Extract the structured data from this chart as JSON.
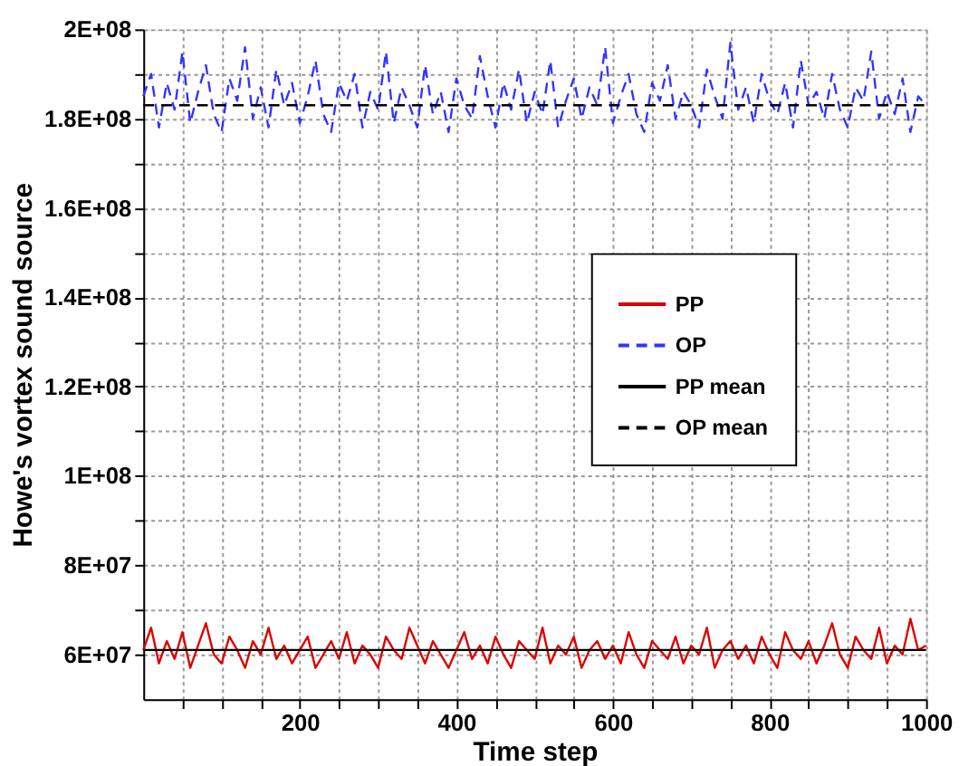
{
  "chart_data": {
    "type": "line",
    "xlabel": "Time step",
    "ylabel": "Howe's vortex sound source",
    "x": [
      0,
      10,
      20,
      30,
      40,
      50,
      60,
      70,
      80,
      90,
      100,
      110,
      120,
      130,
      140,
      150,
      160,
      170,
      180,
      190,
      200,
      210,
      220,
      230,
      240,
      250,
      260,
      270,
      280,
      290,
      300,
      310,
      320,
      330,
      340,
      350,
      360,
      370,
      380,
      390,
      400,
      410,
      420,
      430,
      440,
      450,
      460,
      470,
      480,
      490,
      500,
      510,
      520,
      530,
      540,
      550,
      560,
      570,
      580,
      590,
      600,
      610,
      620,
      630,
      640,
      650,
      660,
      670,
      680,
      690,
      700,
      710,
      720,
      730,
      740,
      750,
      760,
      770,
      780,
      790,
      800,
      810,
      820,
      830,
      840,
      850,
      860,
      870,
      880,
      890,
      900,
      910,
      920,
      930,
      940,
      950,
      960,
      970,
      980,
      990,
      1000
    ],
    "series": [
      {
        "name": "PP",
        "color": "#dd0000",
        "line_style": "solid",
        "values": [
          61000000,
          66000000,
          58000000,
          63000000,
          59000000,
          65000000,
          57000000,
          62000000,
          67000000,
          60000000,
          58000000,
          64000000,
          61000000,
          57000000,
          63000000,
          60000000,
          66000000,
          59000000,
          62000000,
          58000000,
          61000000,
          64000000,
          57000000,
          60000000,
          63000000,
          59000000,
          65000000,
          58000000,
          62000000,
          60000000,
          57000000,
          64000000,
          61000000,
          59000000,
          66000000,
          62000000,
          58000000,
          63000000,
          60000000,
          57000000,
          61000000,
          65000000,
          59000000,
          62000000,
          58000000,
          64000000,
          60000000,
          57000000,
          63000000,
          61000000,
          59000000,
          66000000,
          58000000,
          62000000,
          60000000,
          64000000,
          57000000,
          61000000,
          63000000,
          59000000,
          62000000,
          58000000,
          65000000,
          60000000,
          57000000,
          63000000,
          61000000,
          59000000,
          64000000,
          58000000,
          62000000,
          60000000,
          66000000,
          57000000,
          61000000,
          63000000,
          59000000,
          62000000,
          58000000,
          64000000,
          60000000,
          57000000,
          65000000,
          61000000,
          59000000,
          63000000,
          58000000,
          62000000,
          67000000,
          60000000,
          57000000,
          64000000,
          61000000,
          59000000,
          66000000,
          58000000,
          62000000,
          60000000,
          68000000,
          61000000,
          62000000
        ]
      },
      {
        "name": "OP",
        "color": "#3333ff",
        "line_style": "dashed",
        "values": [
          185000000,
          190000000,
          178000000,
          188000000,
          182000000,
          195000000,
          179000000,
          186000000,
          192000000,
          181000000,
          177000000,
          189000000,
          184000000,
          196000000,
          180000000,
          187000000,
          178000000,
          191000000,
          183000000,
          188000000,
          179000000,
          185000000,
          193000000,
          181000000,
          177000000,
          188000000,
          184000000,
          190000000,
          178000000,
          186000000,
          182000000,
          195000000,
          179000000,
          187000000,
          183000000,
          178000000,
          192000000,
          181000000,
          186000000,
          177000000,
          189000000,
          183000000,
          180000000,
          194000000,
          185000000,
          178000000,
          188000000,
          182000000,
          191000000,
          179000000,
          186000000,
          181000000,
          193000000,
          178000000,
          184000000,
          189000000,
          180000000,
          187000000,
          183000000,
          196000000,
          179000000,
          185000000,
          190000000,
          181000000,
          177000000,
          188000000,
          184000000,
          192000000,
          180000000,
          186000000,
          183000000,
          178000000,
          191000000,
          185000000,
          180000000,
          197000000,
          182000000,
          187000000,
          179000000,
          190000000,
          184000000,
          181000000,
          188000000,
          178000000,
          193000000,
          183000000,
          186000000,
          180000000,
          190000000,
          182000000,
          178000000,
          187000000,
          184000000,
          195000000,
          180000000,
          186000000,
          181000000,
          189000000,
          177000000,
          185000000,
          183000000
        ]
      },
      {
        "name": "PP mean",
        "color": "#000000",
        "line_style": "solid",
        "values": [
          61000000,
          61000000,
          61000000,
          61000000,
          61000000,
          61000000,
          61000000,
          61000000,
          61000000,
          61000000,
          61000000,
          61000000,
          61000000,
          61000000,
          61000000,
          61000000,
          61000000,
          61000000,
          61000000,
          61000000,
          61000000,
          61000000,
          61000000,
          61000000,
          61000000,
          61000000,
          61000000,
          61000000,
          61000000,
          61000000,
          61000000,
          61000000,
          61000000,
          61000000,
          61000000,
          61000000,
          61000000,
          61000000,
          61000000,
          61000000,
          61000000,
          61000000,
          61000000,
          61000000,
          61000000,
          61000000,
          61000000,
          61000000,
          61000000,
          61000000,
          61000000,
          61000000,
          61000000,
          61000000,
          61000000,
          61000000,
          61000000,
          61000000,
          61000000,
          61000000,
          61000000,
          61000000,
          61000000,
          61000000,
          61000000,
          61000000,
          61000000,
          61000000,
          61000000,
          61000000,
          61000000,
          61000000,
          61000000,
          61000000,
          61000000,
          61000000,
          61000000,
          61000000,
          61000000,
          61000000,
          61000000,
          61000000,
          61000000,
          61000000,
          61000000,
          61000000,
          61000000,
          61000000,
          61000000,
          61000000,
          61000000,
          61000000,
          61000000,
          61000000,
          61000000,
          61000000,
          61000000,
          61000000,
          61000000,
          61000000,
          61000000
        ]
      },
      {
        "name": "OP mean",
        "color": "#000000",
        "line_style": "dashed",
        "values": [
          183000000,
          183000000,
          183000000,
          183000000,
          183000000,
          183000000,
          183000000,
          183000000,
          183000000,
          183000000,
          183000000,
          183000000,
          183000000,
          183000000,
          183000000,
          183000000,
          183000000,
          183000000,
          183000000,
          183000000,
          183000000,
          183000000,
          183000000,
          183000000,
          183000000,
          183000000,
          183000000,
          183000000,
          183000000,
          183000000,
          183000000,
          183000000,
          183000000,
          183000000,
          183000000,
          183000000,
          183000000,
          183000000,
          183000000,
          183000000,
          183000000,
          183000000,
          183000000,
          183000000,
          183000000,
          183000000,
          183000000,
          183000000,
          183000000,
          183000000,
          183000000,
          183000000,
          183000000,
          183000000,
          183000000,
          183000000,
          183000000,
          183000000,
          183000000,
          183000000,
          183000000,
          183000000,
          183000000,
          183000000,
          183000000,
          183000000,
          183000000,
          183000000,
          183000000,
          183000000,
          183000000,
          183000000,
          183000000,
          183000000,
          183000000,
          183000000,
          183000000,
          183000000,
          183000000,
          183000000,
          183000000,
          183000000,
          183000000,
          183000000,
          183000000,
          183000000,
          183000000,
          183000000,
          183000000,
          183000000,
          183000000,
          183000000,
          183000000,
          183000000,
          183000000,
          183000000,
          183000000,
          183000000,
          183000000,
          183000000,
          183000000
        ]
      }
    ],
    "xlim": [
      0,
      1000
    ],
    "xticks": [
      {
        "value": 50,
        "label": null
      },
      {
        "value": 100,
        "label": null
      },
      {
        "value": 150,
        "label": null
      },
      200,
      {
        "value": 250,
        "label": null
      },
      {
        "value": 300,
        "label": null
      },
      {
        "value": 350,
        "label": null
      },
      400,
      {
        "value": 450,
        "label": null
      },
      {
        "value": 500,
        "label": null
      },
      {
        "value": 550,
        "label": null
      },
      600,
      {
        "value": 650,
        "label": null
      },
      {
        "value": 700,
        "label": null
      },
      {
        "value": 750,
        "label": null
      },
      800,
      {
        "value": 850,
        "label": null
      },
      {
        "value": 900,
        "label": null
      },
      {
        "value": 950,
        "label": null
      },
      1000
    ],
    "ylim": [
      50000000,
      200000000
    ],
    "yticks": [
      {
        "value": 60000000,
        "label": "6E+07"
      },
      {
        "value": 70000000,
        "label": null
      },
      {
        "value": 80000000,
        "label": "8E+07"
      },
      {
        "value": 90000000,
        "label": null
      },
      {
        "value": 100000000,
        "label": "1E+08"
      },
      {
        "value": 110000000,
        "label": null
      },
      {
        "value": 120000000,
        "label": "1.2E+08"
      },
      {
        "value": 130000000,
        "label": null
      },
      {
        "value": 140000000,
        "label": "1.4E+08"
      },
      {
        "value": 150000000,
        "label": null
      },
      {
        "value": 160000000,
        "label": "1.6E+08"
      },
      {
        "value": 170000000,
        "label": null
      },
      {
        "value": 180000000,
        "label": "1.8E+08"
      },
      {
        "value": 190000000,
        "label": null
      },
      {
        "value": 200000000,
        "label": "2E+08"
      }
    ],
    "grid": true,
    "legend": "right",
    "marker": "none"
  }
}
